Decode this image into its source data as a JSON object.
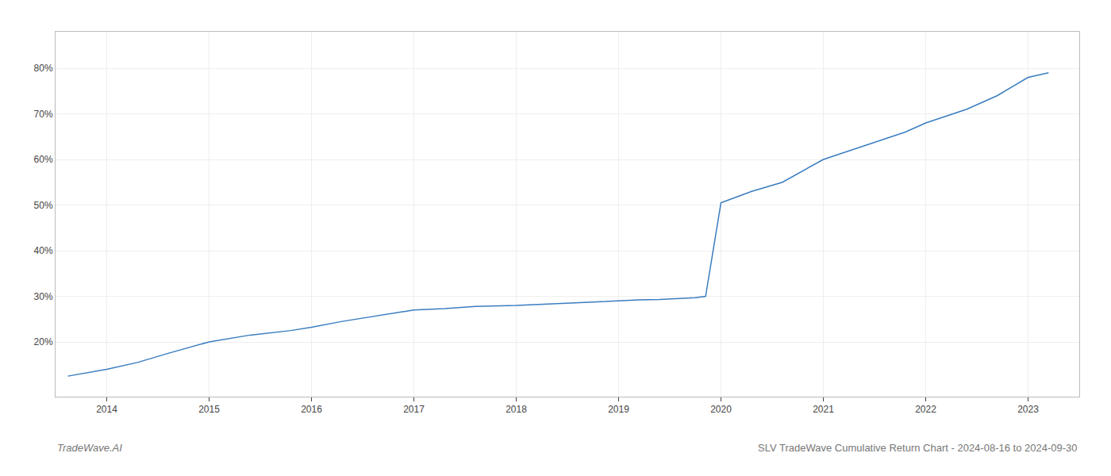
{
  "chart_data": {
    "type": "line",
    "x": [
      2013.62,
      2014.0,
      2014.3,
      2014.6,
      2015.0,
      2015.4,
      2015.8,
      2016.0,
      2016.3,
      2016.7,
      2017.0,
      2017.3,
      2017.6,
      2018.0,
      2018.3,
      2018.6,
      2018.8,
      2019.0,
      2019.2,
      2019.4,
      2019.6,
      2019.75,
      2019.85,
      2020.0,
      2020.3,
      2020.6,
      2021.0,
      2021.4,
      2021.8,
      2022.0,
      2022.4,
      2022.7,
      2023.0,
      2023.2
    ],
    "values": [
      12.5,
      14.0,
      15.5,
      17.5,
      20.0,
      21.5,
      22.5,
      23.2,
      24.5,
      26.0,
      27.0,
      27.3,
      27.8,
      28.0,
      28.3,
      28.7,
      28.8,
      29.0,
      29.2,
      29.3,
      29.5,
      29.7,
      30.0,
      50.5,
      53.0,
      55.0,
      60.0,
      63.0,
      66.0,
      68.0,
      71.0,
      74.0,
      78.0,
      79.0
    ],
    "color": "#3a7dbf",
    "xlim": [
      2013.5,
      2023.5
    ],
    "xticks": [
      2014,
      2015,
      2016,
      2017,
      2018,
      2019,
      2020,
      2021,
      2022,
      2023
    ],
    "ylim": [
      8,
      88
    ],
    "yticks": [
      {
        "value": 20,
        "label": "20%"
      },
      {
        "value": 30,
        "label": "30%"
      },
      {
        "value": 40,
        "label": "40%"
      },
      {
        "value": 50,
        "label": "50%"
      },
      {
        "value": 60,
        "label": "60%"
      },
      {
        "value": 70,
        "label": "70%"
      },
      {
        "value": 80,
        "label": "80%"
      }
    ],
    "grid": true,
    "annotations": [
      "TradeWave.AI",
      "SLV TradeWave Cumulative Return Chart - 2024-08-16 to 2024-09-30"
    ]
  }
}
